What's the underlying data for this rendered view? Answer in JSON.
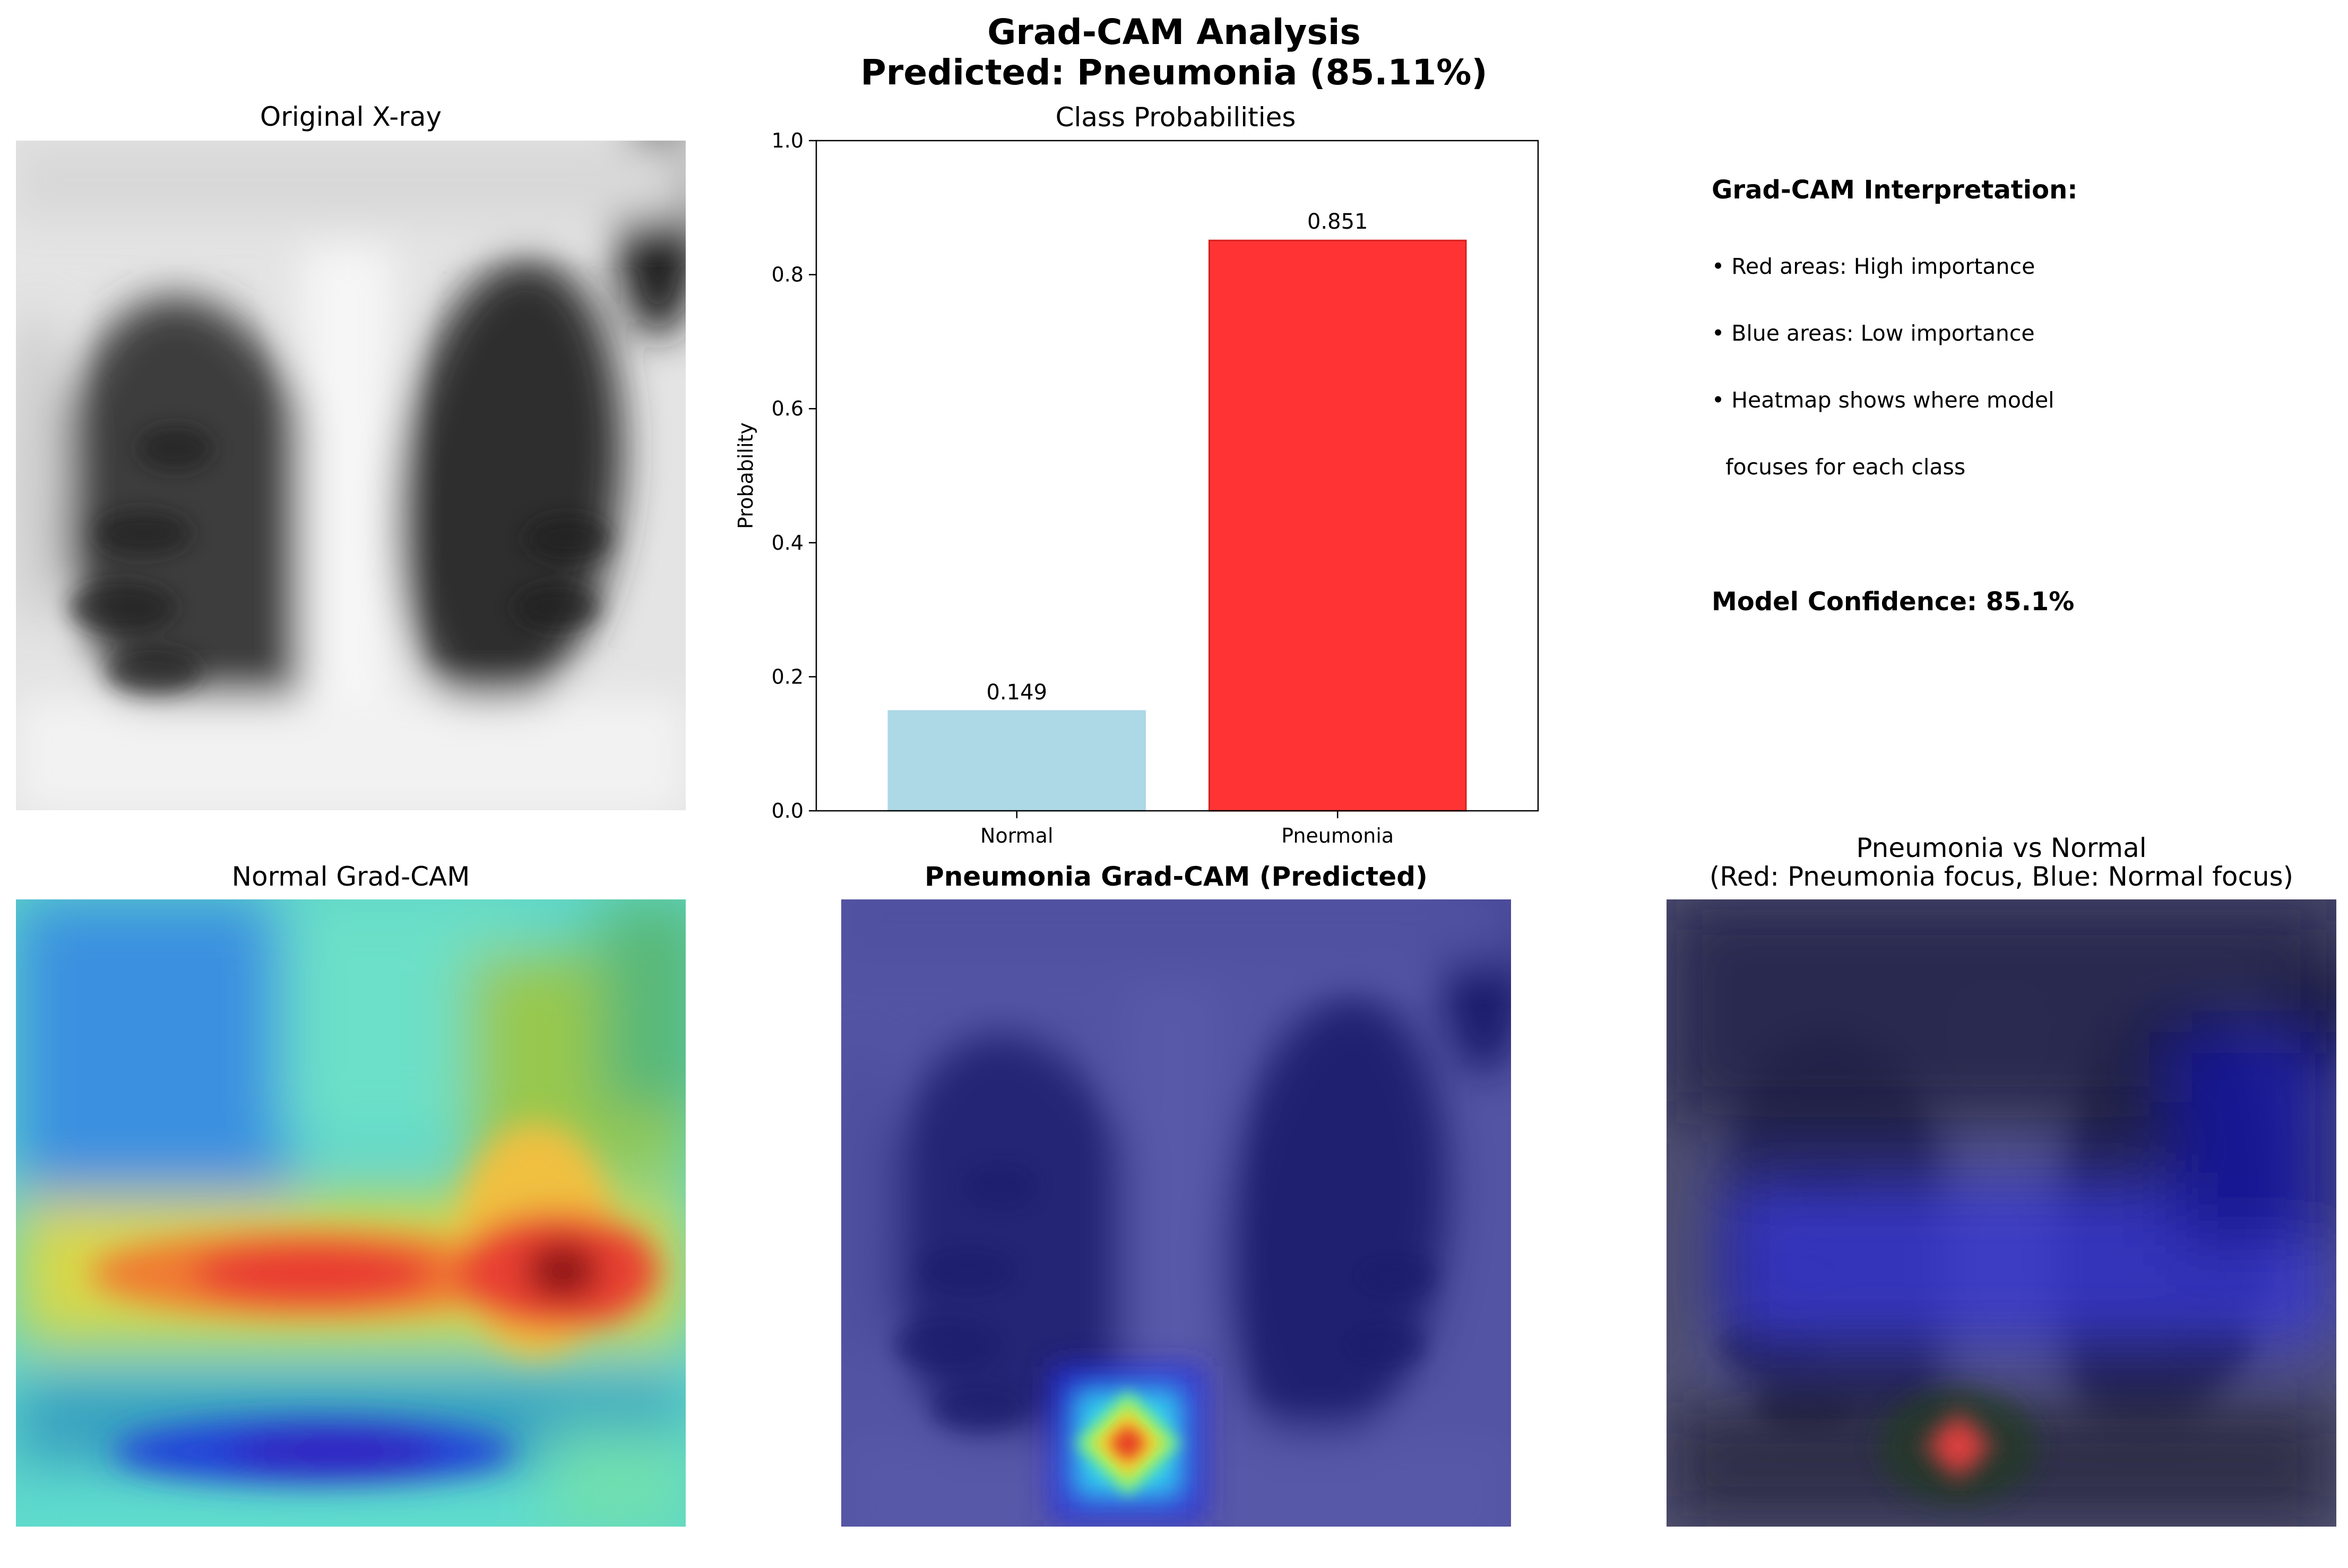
{
  "figure": {
    "title_line1": "Grad-CAM Analysis",
    "title_line2": "Predicted: Pneumonia (85.11%)"
  },
  "panels": {
    "original": {
      "title": "Original X-ray"
    },
    "probs": {
      "title": "Class Probabilities"
    },
    "normal_cam": {
      "title": "Normal Grad-CAM"
    },
    "pneumonia_cam": {
      "title": "Pneumonia Grad-CAM (Predicted)"
    },
    "diff": {
      "title_line1": "Pneumonia vs Normal",
      "title_line2": "(Red: Pneumonia focus, Blue: Normal focus)"
    }
  },
  "interpretation": {
    "heading": "Grad-CAM Interpretation:",
    "bullets": [
      "• Red areas: High importance",
      "• Blue areas: Low importance",
      "• Heatmap shows where model",
      "  focuses for each class"
    ],
    "confidence": "Model Confidence: 85.1%"
  },
  "chart_data": {
    "type": "bar",
    "title": "Class Probabilities",
    "categories": [
      "Normal",
      "Pneumonia"
    ],
    "values": [
      0.149,
      0.851
    ],
    "value_labels": [
      "0.149",
      "0.851"
    ],
    "ylabel": "Probability",
    "xlabel": "",
    "ylim": [
      0,
      1.0
    ],
    "yticks": [
      0.0,
      0.2,
      0.4,
      0.6,
      0.8,
      1.0
    ],
    "ytick_labels": [
      "0.0",
      "0.2",
      "0.4",
      "0.6",
      "0.8",
      "1.0"
    ],
    "colors": [
      "#add8e6",
      "#ff3333"
    ],
    "edge_colors": [
      "#add8e6",
      "#d62020"
    ],
    "grid": false
  }
}
